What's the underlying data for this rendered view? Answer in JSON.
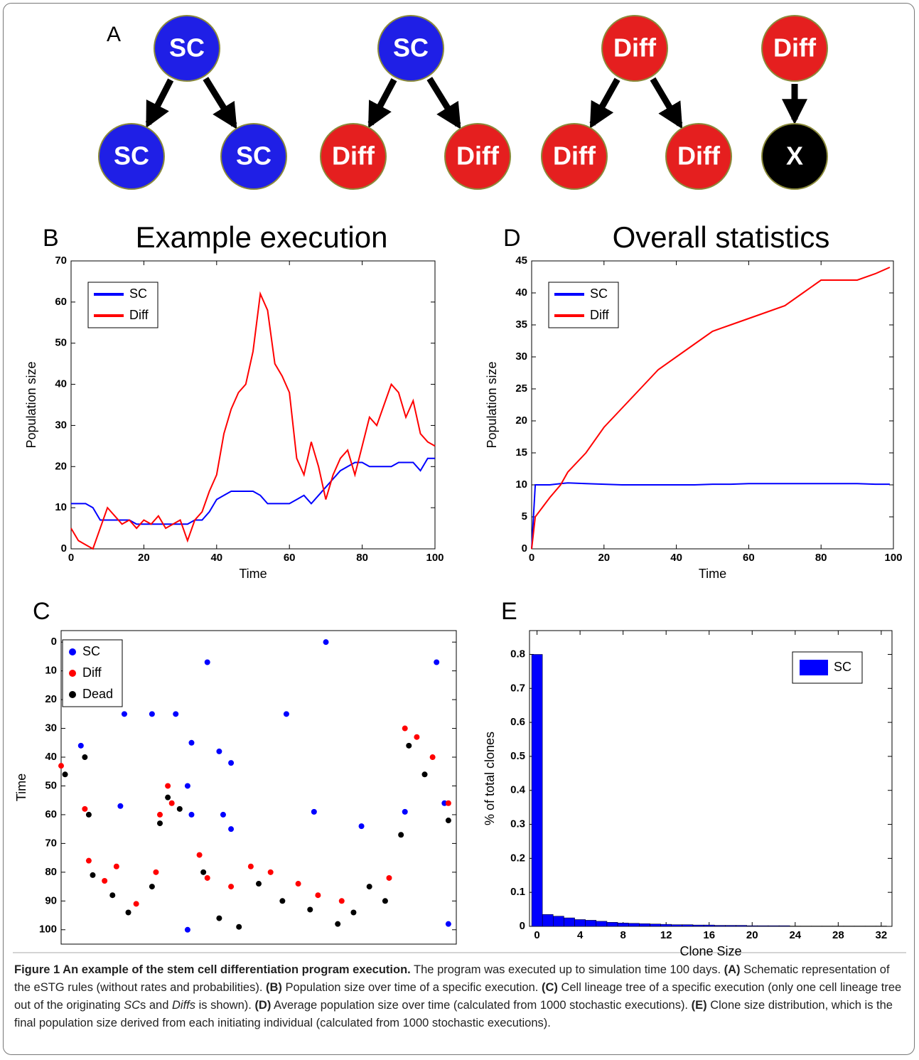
{
  "panel_a": {
    "label": "A",
    "nodes": [
      {
        "label": "SC",
        "color": "#1f1fe6"
      },
      {
        "label": "SC",
        "color": "#1f1fe6"
      },
      {
        "label": "Diff",
        "color": "#e51f1f"
      },
      {
        "label": "Diff",
        "color": "#e51f1f"
      },
      {
        "label": "SC",
        "color": "#1f1fe6"
      },
      {
        "label": "SC",
        "color": "#1f1fe6"
      },
      {
        "label": "Diff",
        "color": "#e51f1f"
      },
      {
        "label": "Diff",
        "color": "#e51f1f"
      },
      {
        "label": "Diff",
        "color": "#e51f1f"
      },
      {
        "label": "Diff",
        "color": "#e51f1f"
      },
      {
        "label": "X",
        "color": "#000000"
      }
    ]
  },
  "chart_data": [
    {
      "type": "line",
      "panel_label": "B",
      "title": "Example execution",
      "xlabel": "Time",
      "ylabel": "Population size",
      "legend": "upper left",
      "x": [
        0,
        2,
        4,
        6,
        8,
        10,
        12,
        14,
        16,
        18,
        20,
        22,
        24,
        26,
        28,
        30,
        32,
        34,
        36,
        38,
        40,
        42,
        44,
        46,
        48,
        50,
        52,
        54,
        56,
        58,
        60,
        62,
        64,
        66,
        68,
        70,
        72,
        74,
        76,
        78,
        80,
        82,
        84,
        86,
        88,
        90,
        92,
        94,
        96,
        98,
        100
      ],
      "series": [
        {
          "name": "SC",
          "color": "#0000ff",
          "values": [
            11,
            11,
            11,
            10,
            7,
            7,
            7,
            7,
            7,
            6,
            6,
            6,
            6,
            6,
            6,
            6,
            6,
            7,
            7,
            9,
            12,
            13,
            14,
            14,
            14,
            14,
            13,
            11,
            11,
            11,
            11,
            12,
            13,
            11,
            13,
            15,
            17,
            19,
            20,
            21,
            21,
            20,
            20,
            20,
            20,
            21,
            21,
            21,
            19,
            22,
            22
          ]
        },
        {
          "name": "Diff",
          "color": "#ff0000",
          "values": [
            5,
            2,
            1,
            0,
            5,
            10,
            8,
            6,
            7,
            5,
            7,
            6,
            8,
            5,
            6,
            7,
            2,
            7,
            9,
            14,
            18,
            28,
            34,
            38,
            40,
            48,
            62,
            58,
            45,
            42,
            38,
            22,
            18,
            26,
            20,
            12,
            18,
            22,
            24,
            18,
            25,
            32,
            30,
            35,
            40,
            38,
            32,
            36,
            28,
            26,
            25
          ]
        }
      ],
      "xlim": [
        0,
        100
      ],
      "xticks": [
        0,
        20,
        40,
        60,
        80,
        100
      ],
      "ylim": [
        0,
        70
      ],
      "yticks": [
        0,
        10,
        20,
        30,
        40,
        50,
        60,
        70
      ]
    },
    {
      "type": "line",
      "panel_label": "D",
      "title": "Overall statistics",
      "xlabel": "Time",
      "ylabel": "Population size",
      "legend": "upper left",
      "x": [
        0,
        1,
        5,
        8,
        10,
        15,
        20,
        25,
        30,
        35,
        40,
        45,
        50,
        55,
        60,
        65,
        70,
        75,
        80,
        85,
        90,
        95,
        99
      ],
      "series": [
        {
          "name": "SC",
          "color": "#0000ff",
          "values": [
            0,
            10,
            10,
            10.2,
            10.3,
            10.2,
            10.1,
            10,
            10,
            10,
            10,
            10,
            10.1,
            10.1,
            10.2,
            10.2,
            10.2,
            10.2,
            10.2,
            10.2,
            10.2,
            10.1,
            10.1
          ]
        },
        {
          "name": "Diff",
          "color": "#ff0000",
          "values": [
            0,
            5,
            8,
            10,
            12,
            15,
            19,
            22,
            25,
            28,
            30,
            32,
            34,
            35,
            36,
            37,
            38,
            40,
            42,
            42,
            42,
            43,
            44
          ]
        }
      ],
      "xlim": [
        0,
        100
      ],
      "xticks": [
        0,
        20,
        40,
        60,
        80,
        100
      ],
      "ylim": [
        0,
        45
      ],
      "yticks": [
        0,
        5,
        10,
        15,
        20,
        25,
        30,
        35,
        40,
        45
      ]
    },
    {
      "type": "scatter",
      "panel_label": "C",
      "ylabel": "Time",
      "legend": "upper left",
      "y_reversed": true,
      "series": [
        {
          "name": "SC",
          "color": "#0000ff",
          "x": [
            67,
            37,
            95,
            57,
            16,
            23,
            29,
            5,
            33,
            40,
            43,
            32,
            15,
            41,
            33,
            87,
            64,
            76,
            43,
            97,
            32,
            98
          ],
          "values": [
            0,
            7,
            7,
            25,
            25,
            25,
            25,
            36,
            35,
            38,
            42,
            50,
            57,
            60,
            60,
            59,
            59,
            64,
            65,
            56,
            100,
            98
          ]
        },
        {
          "name": "Diff",
          "color": "#ff0000",
          "x": [
            0,
            6,
            7,
            11,
            14,
            19,
            25,
            27,
            28,
            35,
            37,
            43,
            48,
            53,
            60,
            65,
            71,
            83,
            87,
            90,
            94,
            98,
            24
          ],
          "values": [
            43,
            58,
            76,
            83,
            78,
            91,
            60,
            50,
            56,
            74,
            82,
            85,
            78,
            80,
            84,
            88,
            90,
            82,
            30,
            33,
            40,
            56,
            80
          ]
        },
        {
          "name": "Dead",
          "color": "#000000",
          "x": [
            1,
            7,
            8,
            13,
            17,
            23,
            25,
            27,
            30,
            36,
            40,
            45,
            50,
            56,
            63,
            70,
            74,
            78,
            82,
            86,
            88,
            92,
            98,
            6
          ],
          "values": [
            46,
            60,
            81,
            88,
            94,
            85,
            63,
            54,
            58,
            80,
            96,
            99,
            84,
            90,
            93,
            98,
            94,
            85,
            90,
            67,
            36,
            46,
            62,
            40
          ]
        }
      ],
      "xlim": [
        0,
        100
      ],
      "ylim": [
        -4,
        105
      ],
      "yticks": [
        0,
        10,
        20,
        30,
        40,
        50,
        60,
        70,
        80,
        90,
        100
      ]
    },
    {
      "type": "histogram",
      "panel_label": "E",
      "xlabel": "Clone Size",
      "ylabel": "% of total clones",
      "legend": "upper right",
      "series": [
        {
          "name": "SC",
          "color": "#0000ff",
          "bins": [
            -0.5,
            0.5,
            1.5,
            2.5,
            3.5,
            4.5,
            5.5,
            6.5,
            7.5,
            8.5,
            9.5,
            10.5,
            11.5,
            12.5,
            13.5,
            14.5,
            15.5,
            16.5,
            17.5,
            18.5,
            19.5,
            20.5,
            21.5,
            22.5,
            23.5,
            24.5,
            25.5,
            26.5,
            27.5,
            28.5,
            29.5,
            30.5,
            31.5,
            32.5
          ],
          "values": [
            0.8,
            0.035,
            0.03,
            0.025,
            0.02,
            0.018,
            0.015,
            0.012,
            0.01,
            0.009,
            0.008,
            0.007,
            0.006,
            0.005,
            0.005,
            0.004,
            0.004,
            0.003,
            0.003,
            0.003,
            0.002,
            0.002,
            0.002,
            0.002,
            0.001,
            0.001,
            0.001,
            0.001,
            0.001,
            0.001,
            0.001,
            0.001,
            0.001
          ]
        }
      ],
      "xlim": [
        -0.7,
        33
      ],
      "xticks": [
        0,
        4,
        8,
        12,
        16,
        20,
        24,
        28,
        32
      ],
      "ylim": [
        0,
        0.87
      ],
      "yticks": [
        0,
        0.1,
        0.2,
        0.3,
        0.4,
        0.5,
        0.6,
        0.7,
        0.8
      ]
    }
  ],
  "caption": {
    "runs": [
      {
        "text": "Figure 1 An example of the stem cell differentiation program execution.",
        "style": "b"
      },
      {
        "text": " The program was executed up to simulation time 100 days. "
      },
      {
        "text": "(A)",
        "style": "b"
      },
      {
        "text": " Schematic representation of the eSTG rules (without rates and probabilities). "
      },
      {
        "text": "(B)",
        "style": "b"
      },
      {
        "text": " Population size over time of a specific execution. "
      },
      {
        "text": "(C)",
        "style": "b"
      },
      {
        "text": " Cell lineage tree of a specific execution (only one cell lineage tree out of the originating "
      },
      {
        "text": "SC",
        "style": "i"
      },
      {
        "text": "s and "
      },
      {
        "text": "Diffs",
        "style": "i"
      },
      {
        "text": " is shown). "
      },
      {
        "text": "(D)",
        "style": "b"
      },
      {
        "text": " Average population size over time (calculated from 1000 stochastic executions). "
      },
      {
        "text": "(E)",
        "style": "b"
      },
      {
        "text": " Clone size distribution, which is the final population size derived from each initiating individual (calculated from 1000 stochastic executions)."
      }
    ]
  }
}
